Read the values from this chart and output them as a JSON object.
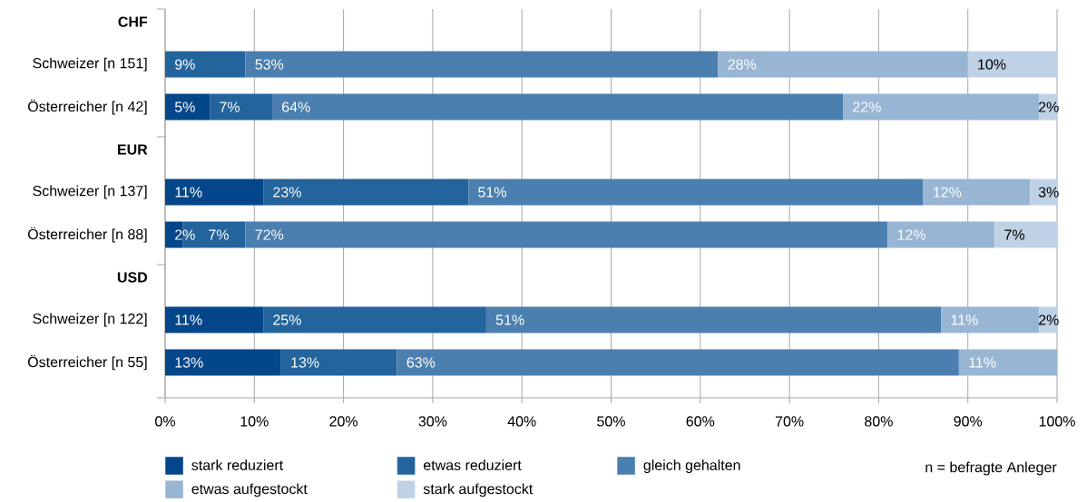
{
  "chart_data": {
    "type": "bar",
    "orientation": "horizontal",
    "stacked": true,
    "categories": [
      "CHF",
      "Schweizer [n 151]",
      "Österreicher [n 42]",
      "EUR",
      "Schweizer [n 137]",
      "Österreicher [n 88]",
      "USD",
      "Schweizer [n 122]",
      "Österreicher [n 55]"
    ],
    "series": [
      {
        "name": "stark reduziert",
        "color": "#03478a",
        "values": [
          null,
          0,
          5,
          null,
          11,
          2,
          null,
          11,
          13
        ],
        "value_labels": [
          null,
          null,
          "5%",
          null,
          "11%",
          "2%",
          null,
          "11%",
          "13%"
        ]
      },
      {
        "name": "etwas reduziert",
        "color": "#24649d",
        "values": [
          null,
          9,
          7,
          null,
          23,
          7,
          null,
          25,
          13
        ],
        "value_labels": [
          null,
          "9%",
          "7%",
          null,
          "23%",
          "7%",
          null,
          "25%",
          "13%"
        ]
      },
      {
        "name": "gleich gehalten",
        "color": "#4b7faf",
        "values": [
          null,
          53,
          64,
          null,
          51,
          72,
          null,
          51,
          63
        ],
        "value_labels": [
          null,
          "53%",
          "64%",
          null,
          "51%",
          "72%",
          null,
          "51%",
          "63%"
        ]
      },
      {
        "name": "etwas aufgestockt",
        "color": "#98b6d4",
        "values": [
          null,
          28,
          22,
          null,
          12,
          12,
          null,
          11,
          11
        ],
        "value_labels": [
          null,
          "28%",
          "22%",
          null,
          "12%",
          "12%",
          null,
          "11%",
          "11%"
        ]
      },
      {
        "name": "stark aufgestockt",
        "color": "#bfd2e5",
        "values": [
          null,
          10,
          2,
          null,
          3,
          7,
          null,
          2,
          0
        ],
        "value_labels": [
          null,
          "10%",
          "2%",
          null,
          "3%",
          "7%",
          null,
          "2%",
          null
        ]
      }
    ],
    "xlim": [
      0,
      100
    ],
    "xticks": [
      {
        "value": 0,
        "label": "0%"
      },
      {
        "value": 10,
        "label": "10%"
      },
      {
        "value": 20,
        "label": "20%"
      },
      {
        "value": 30,
        "label": "30%"
      },
      {
        "value": 40,
        "label": "40%"
      },
      {
        "value": 50,
        "label": "50%"
      },
      {
        "value": 60,
        "label": "60%"
      },
      {
        "value": 70,
        "label": "70%"
      },
      {
        "value": 80,
        "label": "80%"
      },
      {
        "value": 90,
        "label": "90%"
      },
      {
        "value": 100,
        "label": "100%"
      }
    ],
    "grid": "x",
    "legend": "bottom",
    "annotations": [
      "n = befragte Anleger"
    ]
  }
}
